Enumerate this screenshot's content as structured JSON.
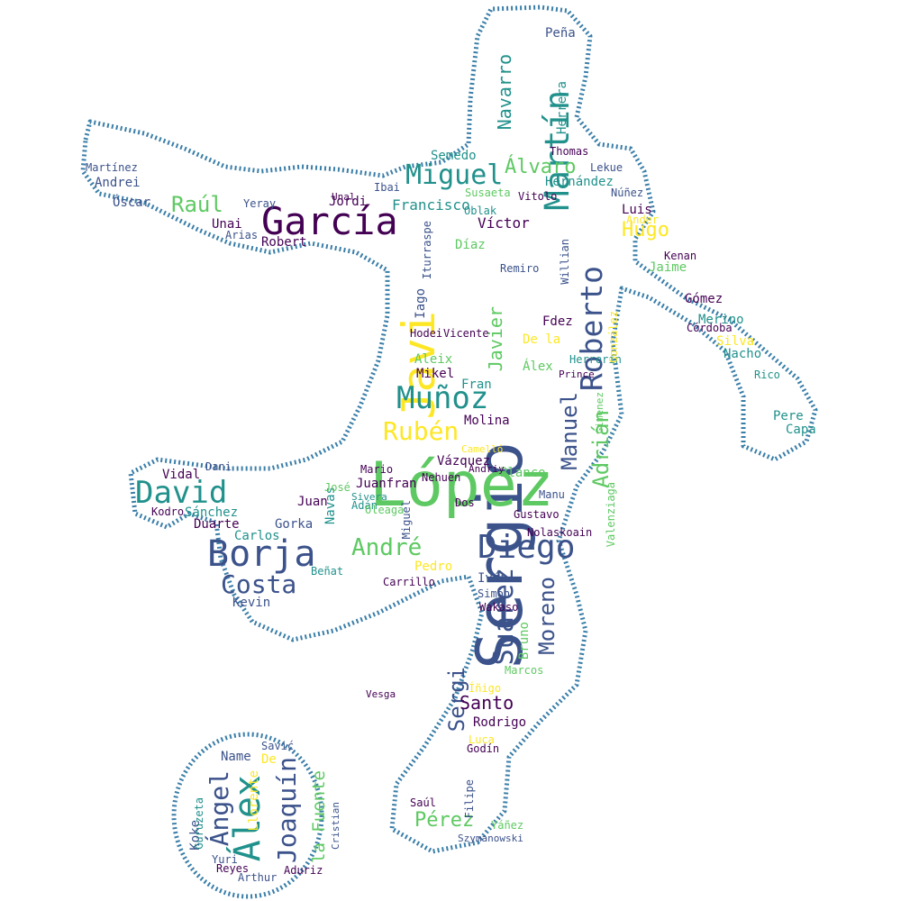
{
  "colors": {
    "background": "#ffffff",
    "outline": "#3a7ea8",
    "palette": [
      "#440154",
      "#3b528b",
      "#21918c",
      "#5ec962",
      "#fde725"
    ]
  },
  "words": [
    {
      "text": "Sergio",
      "color": "#3b528b"
    },
    {
      "text": "López",
      "color": "#5ec962"
    },
    {
      "text": "Javi",
      "color": "#fde725"
    },
    {
      "text": "García",
      "color": "#440154"
    },
    {
      "text": "Borja",
      "color": "#3b528b"
    },
    {
      "text": "Diego",
      "color": "#3b528b"
    },
    {
      "text": "Álex",
      "color": "#21918c"
    },
    {
      "text": "David",
      "color": "#21918c"
    },
    {
      "text": "Roberto",
      "color": "#3b528b"
    },
    {
      "text": "Martín",
      "color": "#21918c"
    },
    {
      "text": "Muñoz",
      "color": "#21918c"
    },
    {
      "text": "Miguel",
      "color": "#21918c"
    },
    {
      "text": "Suárez",
      "color": "#3b528b"
    },
    {
      "text": "André",
      "color": "#5ec962"
    },
    {
      "text": "Costa",
      "color": "#3b528b"
    },
    {
      "text": "Ángel",
      "color": "#3b528b"
    },
    {
      "text": "Joaquín",
      "color": "#3b528b"
    },
    {
      "text": "Rubén",
      "color": "#fde725"
    },
    {
      "text": "Moreno",
      "color": "#3b528b"
    },
    {
      "text": "Manuel",
      "color": "#3b528b"
    },
    {
      "text": "Adrián",
      "color": "#5ec962"
    },
    {
      "text": "Raúl",
      "color": "#5ec962"
    },
    {
      "text": "Álvaro",
      "color": "#5ec962"
    },
    {
      "text": "Sergi",
      "color": "#3b528b"
    },
    {
      "text": "Pérez",
      "color": "#5ec962"
    },
    {
      "text": "Hugo",
      "color": "#fde725"
    },
    {
      "text": "Navarro",
      "color": "#21918c"
    },
    {
      "text": "Javier",
      "color": "#5ec962"
    },
    {
      "text": "Santo",
      "color": "#440154"
    },
    {
      "text": "la Fuente",
      "color": "#5ec962"
    },
    {
      "text": "Francisco",
      "color": "#21918c"
    },
    {
      "text": "Hernández",
      "color": "#21918c"
    },
    {
      "text": "Víctor",
      "color": "#440154"
    },
    {
      "text": "Vázquez",
      "color": "#440154"
    },
    {
      "text": "Molina",
      "color": "#440154"
    },
    {
      "text": "Blanco",
      "color": "#5ec962"
    },
    {
      "text": "Juanfran",
      "color": "#440154"
    },
    {
      "text": "Gorka",
      "color": "#3b528b"
    },
    {
      "text": "Carlos",
      "color": "#21918c"
    },
    {
      "text": "Duarte",
      "color": "#440154"
    },
    {
      "text": "Sánchez",
      "color": "#21918c"
    },
    {
      "text": "Vidal",
      "color": "#440154"
    },
    {
      "text": "Kevin",
      "color": "#3b528b"
    },
    {
      "text": "Navas",
      "color": "#21918c"
    },
    {
      "text": "Juan",
      "color": "#440154"
    },
    {
      "text": "Mario",
      "color": "#440154"
    },
    {
      "text": "Pedro",
      "color": "#fde725"
    },
    {
      "text": "Iván",
      "color": "#3b528b"
    },
    {
      "text": "Rodrigo",
      "color": "#440154"
    },
    {
      "text": "Luca",
      "color": "#fde725"
    },
    {
      "text": "Gómez",
      "color": "#440154"
    },
    {
      "text": "Merino",
      "color": "#21918c"
    },
    {
      "text": "Silva",
      "color": "#fde725"
    },
    {
      "text": "Nacho",
      "color": "#21918c"
    },
    {
      "text": "Luis",
      "color": "#440154"
    },
    {
      "text": "Jaime",
      "color": "#5ec962"
    },
    {
      "text": "Ander",
      "color": "#fde725"
    },
    {
      "text": "Jordi",
      "color": "#440154"
    },
    {
      "text": "Unai",
      "color": "#440154"
    },
    {
      "text": "Robert",
      "color": "#440154"
    },
    {
      "text": "Óscar",
      "color": "#3b528b"
    },
    {
      "text": "Andrei",
      "color": "#3b528b"
    },
    {
      "text": "Martínez",
      "color": "#3b528b"
    },
    {
      "text": "Arias",
      "color": "#3b528b"
    },
    {
      "text": "Semedo",
      "color": "#21918c"
    },
    {
      "text": "Iago",
      "color": "#3b528b"
    },
    {
      "text": "Aleix",
      "color": "#5ec962"
    },
    {
      "text": "Mikel",
      "color": "#440154"
    },
    {
      "text": "Fran",
      "color": "#21918c"
    },
    {
      "text": "De la",
      "color": "#fde725"
    },
    {
      "text": "Fdez",
      "color": "#440154"
    },
    {
      "text": "Álex",
      "color": "#5ec962"
    },
    {
      "text": "Díaz",
      "color": "#5ec962"
    },
    {
      "text": "Peña",
      "color": "#3b528b"
    },
    {
      "text": "Thomas",
      "color": "#440154"
    },
    {
      "text": "Núñez",
      "color": "#3b528b"
    },
    {
      "text": "Koke",
      "color": "#3b528b"
    },
    {
      "text": "Name",
      "color": "#3b528b"
    },
    {
      "text": "De",
      "color": "#fde725"
    },
    {
      "text": "Saúl",
      "color": "#440154"
    },
    {
      "text": "Bruno",
      "color": "#5ec962"
    },
    {
      "text": "Yuri",
      "color": "#3b528b"
    },
    {
      "text": "Aduriz",
      "color": "#440154"
    },
    {
      "text": "Llorente",
      "color": "#fde725"
    },
    {
      "text": "Rico",
      "color": "#21918c"
    },
    {
      "text": "Pere",
      "color": "#21918c"
    },
    {
      "text": "Capa",
      "color": "#21918c"
    },
    {
      "text": "Adán",
      "color": "#21918c"
    },
    {
      "text": "José",
      "color": "#5ec962"
    },
    {
      "text": "Beñat",
      "color": "#21918c"
    },
    {
      "text": "Nolaskoain",
      "color": "#440154"
    },
    {
      "text": "Dani",
      "color": "#3b528b"
    },
    {
      "text": "Kodro",
      "color": "#440154"
    },
    {
      "text": "Savić",
      "color": "#3b528b"
    },
    {
      "text": "Godín",
      "color": "#440154"
    },
    {
      "text": "Reyes",
      "color": "#440154"
    },
    {
      "text": "Arthur",
      "color": "#3b528b"
    },
    {
      "text": "Córdoba",
      "color": "#440154"
    },
    {
      "text": "Kenan",
      "color": "#440154"
    },
    {
      "text": "Lekue",
      "color": "#3b528b"
    },
    {
      "text": "Oleaga",
      "color": "#5ec962"
    },
    {
      "text": "Íñigo",
      "color": "#fde725"
    },
    {
      "text": "Marcos",
      "color": "#5ec962"
    },
    {
      "text": "Vitolo",
      "color": "#440154"
    },
    {
      "text": "Oblak",
      "color": "#21918c"
    },
    {
      "text": "Remiro",
      "color": "#3b528b"
    },
    {
      "text": "Herrerín",
      "color": "#21918c"
    },
    {
      "text": "Nehuen",
      "color": "#440154"
    },
    {
      "text": "Miguel",
      "color": "#3b528b"
    },
    {
      "text": "Dos",
      "color": "#440154"
    },
    {
      "text": "Yeray",
      "color": "#3b528b"
    },
    {
      "text": "Susaeta",
      "color": "#5ec962"
    },
    {
      "text": "Ibai",
      "color": "#3b528b"
    },
    {
      "text": "Hodei",
      "color": "#440154"
    },
    {
      "text": "Vicente",
      "color": "#440154"
    },
    {
      "text": "Iturraspe",
      "color": "#3b528b"
    },
    {
      "text": "Herrera",
      "color": "#21918c"
    },
    {
      "text": "González",
      "color": "#fde725"
    },
    {
      "text": "Valenziaga",
      "color": "#5ec962"
    },
    {
      "text": "Carrillo",
      "color": "#440154"
    },
    {
      "text": "Yáñez",
      "color": "#5ec962"
    },
    {
      "text": "Filipe",
      "color": "#3b528b"
    },
    {
      "text": "Manu",
      "color": "#3b528b"
    },
    {
      "text": "Gustavo",
      "color": "#440154"
    },
    {
      "text": "Gimenez",
      "color": "#5ec962"
    },
    {
      "text": "Simón",
      "color": "#3b528b"
    },
    {
      "text": "Wakaso",
      "color": "#440154"
    },
    {
      "text": "Szymanowski",
      "color": "#3b528b"
    },
    {
      "text": "Sivera",
      "color": "#21918c"
    },
    {
      "text": "Guruzeta",
      "color": "#21918c"
    },
    {
      "text": "Cristian",
      "color": "#3b528b"
    },
    {
      "text": "Willian",
      "color": "#3b528b"
    },
    {
      "text": "Prince",
      "color": "#440154"
    },
    {
      "text": "Camelló",
      "color": "#fde725"
    },
    {
      "text": "Andriy",
      "color": "#440154"
    },
    {
      "text": "Vesga",
      "color": "#440154"
    },
    {
      "text": "Unal",
      "color": "#440154"
    }
  ]
}
